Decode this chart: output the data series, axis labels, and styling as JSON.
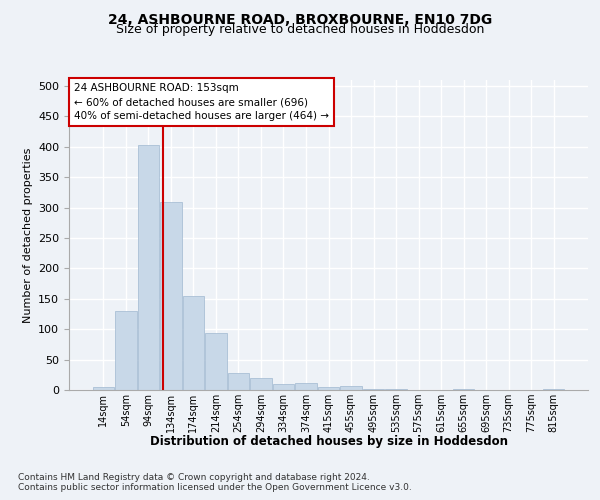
{
  "title1": "24, ASHBOURNE ROAD, BROXBOURNE, EN10 7DG",
  "title2": "Size of property relative to detached houses in Hoddesdon",
  "xlabel": "Distribution of detached houses by size in Hoddesdon",
  "ylabel": "Number of detached properties",
  "footer1": "Contains HM Land Registry data © Crown copyright and database right 2024.",
  "footer2": "Contains public sector information licensed under the Open Government Licence v3.0.",
  "annotation_title": "24 ASHBOURNE ROAD: 153sqm",
  "annotation_line1": "← 60% of detached houses are smaller (696)",
  "annotation_line2": "40% of semi-detached houses are larger (464) →",
  "bar_values": [
    5,
    130,
    403,
    310,
    155,
    93,
    28,
    20,
    10,
    12,
    5,
    6,
    1,
    1,
    0,
    0,
    1,
    0,
    0,
    0,
    1
  ],
  "bin_labels": [
    "14sqm",
    "54sqm",
    "94sqm",
    "134sqm",
    "174sqm",
    "214sqm",
    "254sqm",
    "294sqm",
    "334sqm",
    "374sqm",
    "415sqm",
    "455sqm",
    "495sqm",
    "535sqm",
    "575sqm",
    "615sqm",
    "655sqm",
    "695sqm",
    "735sqm",
    "775sqm",
    "815sqm"
  ],
  "bar_color": "#c8d8e8",
  "bar_edge_color": "#a0b8d0",
  "vline_x": 2.65,
  "vline_color": "#cc0000",
  "background_color": "#eef2f7",
  "grid_color": "#ffffff",
  "annotation_box_color": "#ffffff",
  "annotation_box_edge": "#cc0000",
  "ylim": [
    0,
    510
  ],
  "yticks": [
    0,
    50,
    100,
    150,
    200,
    250,
    300,
    350,
    400,
    450,
    500
  ]
}
